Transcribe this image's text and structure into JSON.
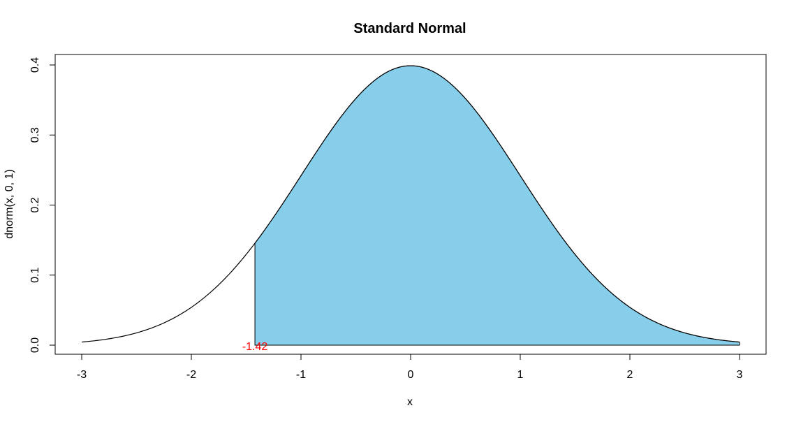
{
  "chart_data": {
    "type": "area",
    "title": "Standard Normal",
    "xlabel": "x",
    "ylabel": "dnorm(x, 0, 1)",
    "xlim": [
      -3,
      3
    ],
    "ylim": [
      0.0,
      0.4
    ],
    "x_ticks": [
      "-3",
      "-2",
      "-1",
      "0",
      "1",
      "2",
      "3"
    ],
    "y_ticks": [
      "0.0",
      "0.1",
      "0.2",
      "0.3",
      "0.4"
    ],
    "grid": false,
    "legend": "none",
    "series": [
      {
        "name": "",
        "function": "dnorm(x, 0, 1)",
        "x_range": [
          -3,
          3
        ]
      }
    ],
    "shaded_region": {
      "from": -1.42,
      "to": 3,
      "fill": "#87ceeb",
      "outline": "#000000"
    },
    "annotations": [
      {
        "text": "-1.42",
        "x": -1.42,
        "y": 0.0,
        "color": "#ff0000"
      }
    ]
  }
}
